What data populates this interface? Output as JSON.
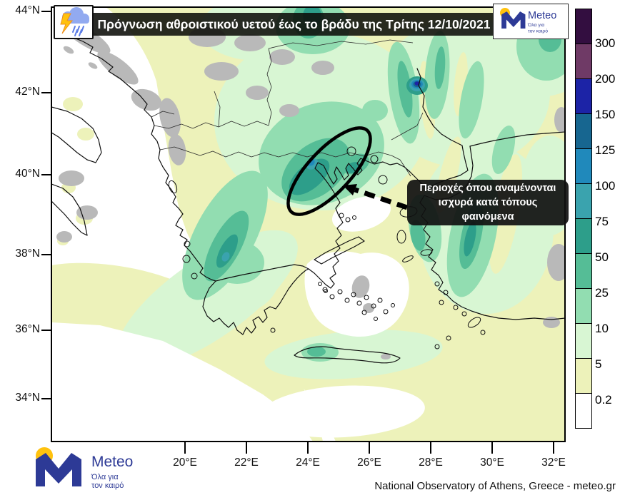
{
  "header": {
    "title": "Πρόγνωση αθροιστικού υετού έως το βράδυ της Τρίτης 12/10/2021"
  },
  "icons": {
    "header_icon": "storm-cloud-lightning-rain-icon",
    "brand_icon": "meteo-m-with-sun-icon"
  },
  "brand": {
    "name": "Meteo",
    "tagline": [
      "Όλα για",
      "τον καιρό"
    ],
    "blue": "#2d3a96",
    "yellow": "#ffc20e"
  },
  "annotation": {
    "lines": [
      "Περιοχές όπου αναμένονται",
      "ισχυρά κατά τόπους",
      "φαινόμενα"
    ]
  },
  "axes": {
    "latitude": [
      "44°N",
      "42°N",
      "40°N",
      "38°N",
      "36°N",
      "34°N"
    ],
    "longitude": [
      "20°E",
      "22°E",
      "24°E",
      "26°E",
      "28°E",
      "30°E",
      "32°E"
    ]
  },
  "legend": {
    "labels": [
      "300",
      "200",
      "150",
      "125",
      "100",
      "75",
      "50",
      "25",
      "10",
      "5",
      "0.2"
    ],
    "colors_top_to_bottom": [
      "#330e40",
      "#6f3a66",
      "#1c23a6",
      "#176690",
      "#2089bb",
      "#3aa3ae",
      "#2d9e8a",
      "#55bd96",
      "#92ddb1",
      "#d8f6d3",
      "#edf2ba",
      "#ffffff"
    ],
    "no_data_gray": "#b9b9b9"
  },
  "footer": {
    "credit": "National Observatory of Athens, Greece - meteo.gr"
  }
}
